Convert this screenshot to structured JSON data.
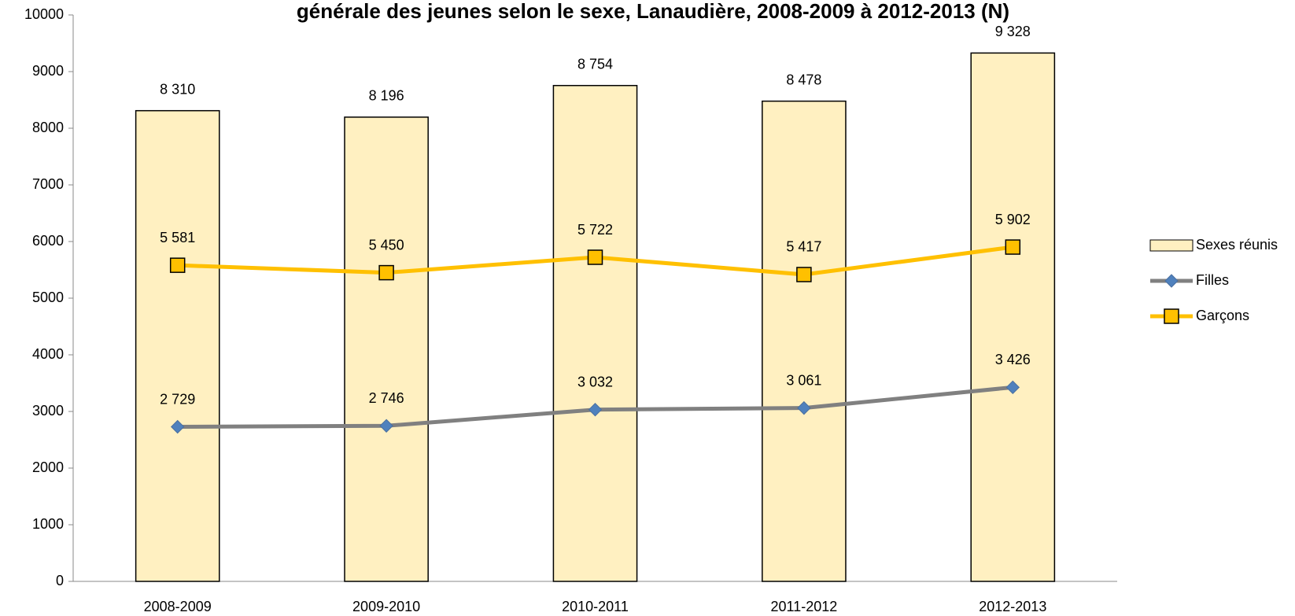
{
  "chart_data": {
    "type": "bar",
    "title": "générale des jeunes selon le sexe, Lanaudière, 2008-2009 à 2012-2013 (N)",
    "categories": [
      "2008-2009",
      "2009-2010",
      "2010-2011",
      "2011-2012",
      "2012-2013"
    ],
    "series": [
      {
        "name": "Sexes réunis",
        "type": "bar",
        "color": "#fff0c1",
        "values": [
          8310,
          8196,
          8754,
          8478,
          9328
        ],
        "value_labels": [
          "8 310",
          "8 196",
          "8 754",
          "8 478",
          "9 328"
        ]
      },
      {
        "name": "Filles",
        "type": "line",
        "marker": "diamond",
        "color": "#808080",
        "marker_color": "#4f81bd",
        "values": [
          2729,
          2746,
          3032,
          3061,
          3426
        ],
        "value_labels": [
          "2 729",
          "2 746",
          "3 032",
          "3 061",
          "3 426"
        ]
      },
      {
        "name": "Garçons",
        "type": "line",
        "marker": "square",
        "color": "#ffc000",
        "marker_color": "#ffc000",
        "values": [
          5581,
          5450,
          5722,
          5417,
          5902
        ],
        "value_labels": [
          "5 581",
          "5 450",
          "5 722",
          "5 417",
          "5 902"
        ]
      }
    ],
    "ylim": [
      0,
      10000
    ],
    "yticks": [
      0,
      1000,
      2000,
      3000,
      4000,
      5000,
      6000,
      7000,
      8000,
      9000,
      10000
    ],
    "grid": false,
    "legend": "right"
  }
}
